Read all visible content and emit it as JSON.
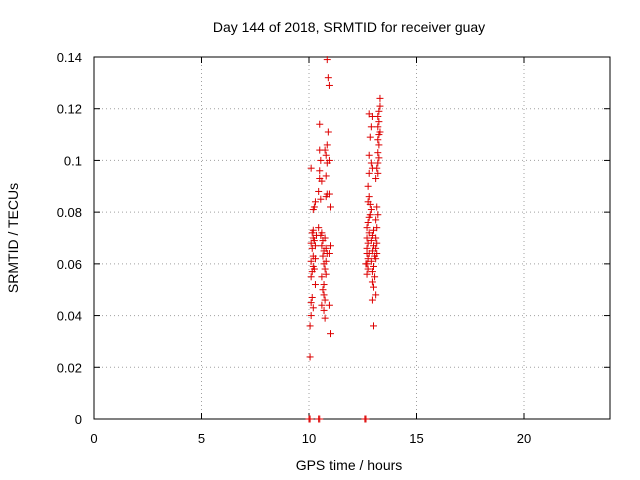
{
  "chart_data": {
    "type": "scatter",
    "title": "Day 144 of 2018, SRMTID for receiver guay",
    "xlabel": "GPS time / hours",
    "ylabel": "SRMTID / TECUs",
    "xlim": [
      0,
      24
    ],
    "ylim": [
      0,
      0.14
    ],
    "xticks": [
      "0",
      "5",
      "10",
      "15",
      "20"
    ],
    "xtick_values": [
      0,
      5,
      10,
      15,
      20
    ],
    "yticks": [
      "0",
      "0.02",
      "0.04",
      "0.06",
      "0.08",
      "0.1",
      "0.12",
      "0.14"
    ],
    "ytick_values": [
      0,
      0.02,
      0.04,
      0.06,
      0.08,
      0.1,
      0.12,
      0.14
    ],
    "grid": true,
    "marker": "plus",
    "marker_color": "#dd0000",
    "series": [
      {
        "points": [
          [
            10.05,
            0.024
          ],
          [
            10.05,
            0.036
          ],
          [
            10.1,
            0.04
          ],
          [
            10.1,
            0.045
          ],
          [
            10.15,
            0.047
          ],
          [
            10.1,
            0.055
          ],
          [
            10.15,
            0.057
          ],
          [
            10.2,
            0.059
          ],
          [
            10.1,
            0.061
          ],
          [
            10.2,
            0.063
          ],
          [
            10.15,
            0.066
          ],
          [
            10.1,
            0.068
          ],
          [
            10.2,
            0.07
          ],
          [
            10.15,
            0.072
          ],
          [
            10.2,
            0.073
          ],
          [
            10.25,
            0.069
          ],
          [
            10.1,
            0.097
          ],
          [
            10.2,
            0.081
          ],
          [
            10.25,
            0.082
          ],
          [
            10.3,
            0.084
          ],
          [
            10.2,
            0.043
          ],
          [
            10.3,
            0.052
          ],
          [
            10.25,
            0.058
          ],
          [
            10.3,
            0.062
          ],
          [
            10.3,
            0.067
          ],
          [
            10.35,
            0.071
          ],
          [
            10.5,
            0.114
          ],
          [
            10.5,
            0.104
          ],
          [
            10.55,
            0.1
          ],
          [
            10.5,
            0.093
          ],
          [
            10.45,
            0.088
          ],
          [
            10.55,
            0.085
          ],
          [
            10.6,
            0.092
          ],
          [
            10.6,
            0.072
          ],
          [
            10.65,
            0.069
          ],
          [
            10.6,
            0.067
          ],
          [
            10.7,
            0.065
          ],
          [
            10.65,
            0.063
          ],
          [
            10.7,
            0.06
          ],
          [
            10.75,
            0.058
          ],
          [
            10.6,
            0.055
          ],
          [
            10.7,
            0.052
          ],
          [
            10.65,
            0.05
          ],
          [
            10.7,
            0.048
          ],
          [
            10.75,
            0.046
          ],
          [
            10.6,
            0.044
          ],
          [
            10.7,
            0.042
          ],
          [
            10.75,
            0.039
          ],
          [
            10.8,
            0.056
          ],
          [
            10.8,
            0.061
          ],
          [
            10.85,
            0.064
          ],
          [
            10.8,
            0.066
          ],
          [
            10.75,
            0.07
          ],
          [
            10.8,
            0.086
          ],
          [
            10.85,
            0.087
          ],
          [
            10.8,
            0.094
          ],
          [
            10.85,
            0.099
          ],
          [
            10.8,
            0.102
          ],
          [
            10.75,
            0.104
          ],
          [
            10.85,
            0.106
          ],
          [
            10.9,
            0.111
          ],
          [
            10.85,
            0.139
          ],
          [
            10.9,
            0.132
          ],
          [
            10.95,
            0.129
          ],
          [
            10.95,
            0.1
          ],
          [
            10.95,
            0.087
          ],
          [
            11.0,
            0.082
          ],
          [
            10.95,
            0.064
          ],
          [
            11.0,
            0.067
          ],
          [
            10.95,
            0.044
          ],
          [
            11.0,
            0.033
          ],
          [
            10.5,
            0.096
          ],
          [
            10.45,
            0.074
          ],
          [
            10.55,
            0.071
          ],
          [
            12.7,
            0.056
          ],
          [
            12.75,
            0.058
          ],
          [
            12.7,
            0.06
          ],
          [
            12.75,
            0.062
          ],
          [
            12.8,
            0.064
          ],
          [
            12.7,
            0.066
          ],
          [
            12.75,
            0.068
          ],
          [
            12.7,
            0.07
          ],
          [
            12.8,
            0.072
          ],
          [
            12.7,
            0.074
          ],
          [
            12.75,
            0.076
          ],
          [
            12.8,
            0.078
          ],
          [
            12.85,
            0.079
          ],
          [
            12.75,
            0.084
          ],
          [
            12.8,
            0.086
          ],
          [
            12.85,
            0.083
          ],
          [
            12.9,
            0.081
          ],
          [
            12.75,
            0.09
          ],
          [
            12.8,
            0.095
          ],
          [
            12.8,
            0.102
          ],
          [
            12.85,
            0.109
          ],
          [
            12.8,
            0.118
          ],
          [
            12.95,
            0.117
          ],
          [
            12.9,
            0.113
          ],
          [
            12.9,
            0.099
          ],
          [
            12.95,
            0.097
          ],
          [
            13.0,
            0.073
          ],
          [
            12.95,
            0.071
          ],
          [
            12.9,
            0.069
          ],
          [
            13.0,
            0.067
          ],
          [
            12.95,
            0.065
          ],
          [
            13.05,
            0.063
          ],
          [
            12.9,
            0.061
          ],
          [
            13.0,
            0.059
          ],
          [
            12.95,
            0.057
          ],
          [
            13.05,
            0.055
          ],
          [
            12.95,
            0.053
          ],
          [
            13.0,
            0.051
          ],
          [
            12.95,
            0.046
          ],
          [
            13.0,
            0.036
          ],
          [
            13.1,
            0.048
          ],
          [
            13.1,
            0.062
          ],
          [
            13.15,
            0.064
          ],
          [
            13.1,
            0.066
          ],
          [
            13.15,
            0.068
          ],
          [
            13.1,
            0.07
          ],
          [
            13.15,
            0.074
          ],
          [
            13.1,
            0.077
          ],
          [
            13.2,
            0.079
          ],
          [
            13.15,
            0.082
          ],
          [
            13.1,
            0.093
          ],
          [
            13.2,
            0.095
          ],
          [
            13.15,
            0.097
          ],
          [
            13.2,
            0.099
          ],
          [
            13.25,
            0.101
          ],
          [
            13.2,
            0.103
          ],
          [
            13.25,
            0.106
          ],
          [
            13.2,
            0.108
          ],
          [
            13.25,
            0.11
          ],
          [
            13.3,
            0.111
          ],
          [
            13.2,
            0.113
          ],
          [
            13.25,
            0.115
          ],
          [
            13.2,
            0.117
          ],
          [
            13.25,
            0.119
          ],
          [
            13.3,
            0.121
          ],
          [
            13.3,
            0.124
          ],
          [
            12.65,
            0.06
          ],
          [
            12.7,
            0.064
          ]
        ]
      },
      {
        "points": [
          [
            10.0,
            0.0
          ],
          [
            10.05,
            0.0
          ],
          [
            10.45,
            0.0
          ],
          [
            10.5,
            0.0
          ],
          [
            12.6,
            0.0
          ],
          [
            12.65,
            0.0
          ]
        ]
      }
    ]
  }
}
